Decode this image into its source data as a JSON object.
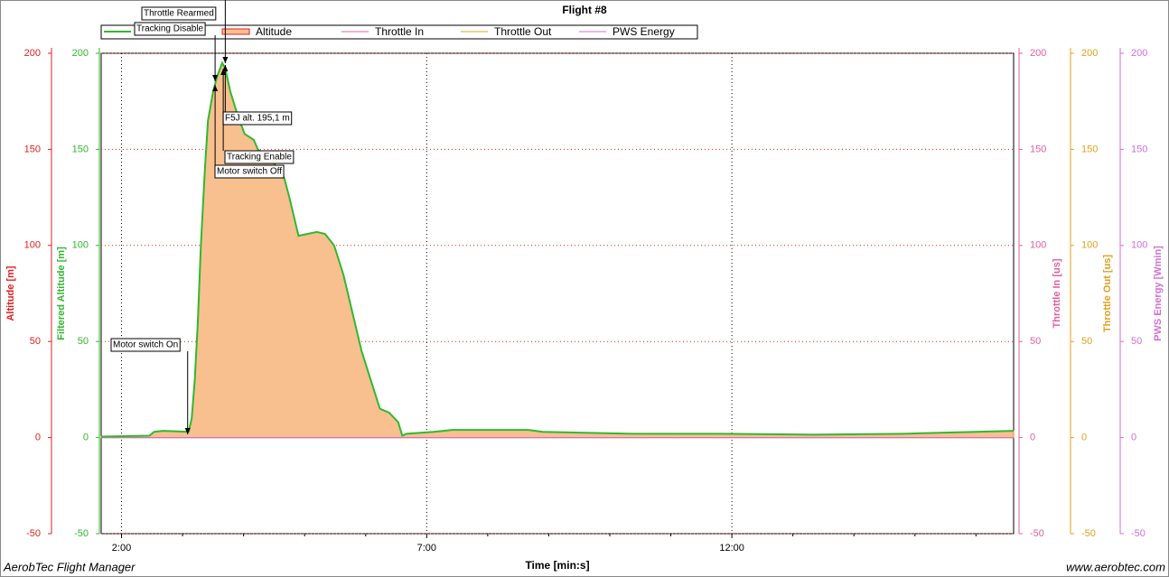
{
  "chart_data": {
    "type": "line",
    "title": "Flight #8",
    "xlabel": "Time [min:s]",
    "x": [
      100,
      147.5,
      152,
      161,
      186,
      189,
      192,
      195,
      198,
      202,
      205,
      210,
      214,
      219,
      222,
      227,
      234,
      241,
      250,
      254,
      267,
      280,
      285,
      294,
      303,
      312,
      320,
      329,
      338,
      347,
      356,
      365,
      374,
      383,
      392,
      396,
      400,
      427,
      445,
      520,
      534,
      622,
      711,
      800,
      889,
      960,
      997
    ],
    "xlim": [
      100,
      997
    ],
    "xticks": [
      {
        "value": 120,
        "label": "2:00"
      },
      {
        "value": 420,
        "label": "7:00"
      },
      {
        "value": 720,
        "label": "12:00"
      }
    ],
    "x_minor_ticks": [
      180,
      240,
      300,
      360,
      480,
      540,
      600,
      660,
      780,
      840,
      900,
      960
    ],
    "grid": true,
    "axes": [
      {
        "label": "Altitude [m]",
        "color": "#e02020",
        "side": "left",
        "ylim": [
          -50,
          200
        ],
        "yticks": [
          -50,
          0,
          50,
          100,
          150,
          200
        ]
      },
      {
        "label": "Filtered Altitude [m]",
        "color": "#30b830",
        "side": "left",
        "ylim": [
          -50,
          200
        ],
        "yticks": [
          -50,
          0,
          50,
          100,
          150,
          200
        ]
      },
      {
        "label": "Throttle In [us]",
        "color": "#e060a0",
        "side": "right",
        "ylim": [
          -50,
          200
        ],
        "yticks": [
          -50,
          0,
          50,
          100,
          150,
          200
        ]
      },
      {
        "label": "Throttle Out [us]",
        "color": "#e0a020",
        "side": "right",
        "ylim": [
          -50,
          200
        ],
        "yticks": [
          -50,
          0,
          50,
          100,
          150,
          200
        ]
      },
      {
        "label": "PWS Energy [Wmin]",
        "color": "#d070d0",
        "side": "right",
        "ylim": [
          -50,
          200
        ],
        "yticks": [
          -50,
          0,
          50,
          100,
          150,
          200
        ]
      }
    ],
    "series": [
      {
        "color": "#30b830",
        "axis": 1,
        "values": [
          0.5,
          1,
          3,
          3.5,
          3,
          10,
          30,
          60,
          100,
          140,
          165,
          180,
          188,
          195,
          192,
          180,
          168,
          158,
          155,
          150,
          145,
          135,
          125,
          105,
          106,
          107,
          106,
          100,
          85,
          65,
          45,
          30,
          15,
          13,
          8,
          1,
          2,
          3,
          4,
          4,
          3,
          2,
          2,
          1.5,
          2,
          3,
          3.5
        ]
      },
      {
        "name": "Altitude",
        "color": "#f9c08f",
        "axis": 0,
        "area": true,
        "values": [
          0.5,
          1,
          3,
          3.5,
          3,
          10,
          30,
          60,
          100,
          140,
          165,
          180,
          188,
          195,
          192,
          180,
          168,
          158,
          155,
          150,
          145,
          135,
          125,
          105,
          106,
          107,
          106,
          100,
          85,
          65,
          45,
          30,
          15,
          13,
          8,
          1,
          2,
          3,
          4,
          4,
          3,
          2,
          2,
          1.5,
          2,
          3,
          3.5
        ]
      },
      {
        "name": "Throttle In",
        "color": "#e060a0",
        "axis": 2,
        "values": [
          0,
          0,
          0,
          0,
          0,
          0,
          0,
          0,
          0,
          0,
          0,
          0,
          0,
          0,
          0,
          0,
          0,
          0,
          0,
          0,
          0,
          0,
          0,
          0,
          0,
          0,
          0,
          0,
          0,
          0,
          0,
          0,
          0,
          0,
          0,
          0,
          0,
          0,
          0,
          0,
          0,
          0,
          0,
          0,
          0,
          0,
          0
        ]
      },
      {
        "name": "Throttle Out",
        "color": "#e0a020",
        "axis": 3,
        "values": [
          0,
          0,
          0,
          0,
          0,
          0,
          0,
          0,
          0,
          0,
          0,
          0,
          0,
          0,
          0,
          0,
          0,
          0,
          0,
          0,
          0,
          0,
          0,
          0,
          0,
          0,
          0,
          0,
          0,
          0,
          0,
          0,
          0,
          0,
          0,
          0,
          0,
          0,
          0,
          0,
          0,
          0,
          0,
          0,
          0,
          0,
          0
        ]
      },
      {
        "name": "PWS Energy",
        "color": "#d070d0",
        "axis": 4,
        "values": [
          0,
          0,
          0,
          0,
          0,
          0,
          0,
          0,
          0,
          0,
          0,
          0,
          0,
          0,
          0,
          0,
          0,
          0,
          0,
          0,
          0,
          0,
          0,
          0,
          0,
          0,
          0,
          0,
          0,
          0,
          0,
          0,
          0,
          0,
          0,
          0,
          0,
          0,
          0,
          0,
          0,
          0,
          0,
          0,
          0,
          0,
          0
        ]
      }
    ],
    "annotations": [
      {
        "text": "Throttle Rearmed",
        "x": 222
      },
      {
        "text": "Tracking Disable",
        "x": 212
      },
      {
        "text": "F5J alt. 195,1 m",
        "x": 222
      },
      {
        "text": "Tracking Enable",
        "x": 220
      },
      {
        "text": "Motor switch Off",
        "x": 212
      },
      {
        "text": "Motor switch On",
        "x": 185
      }
    ]
  },
  "footer": {
    "left": "AerobTec Flight Manager",
    "right": "www.aerobtec.com"
  }
}
